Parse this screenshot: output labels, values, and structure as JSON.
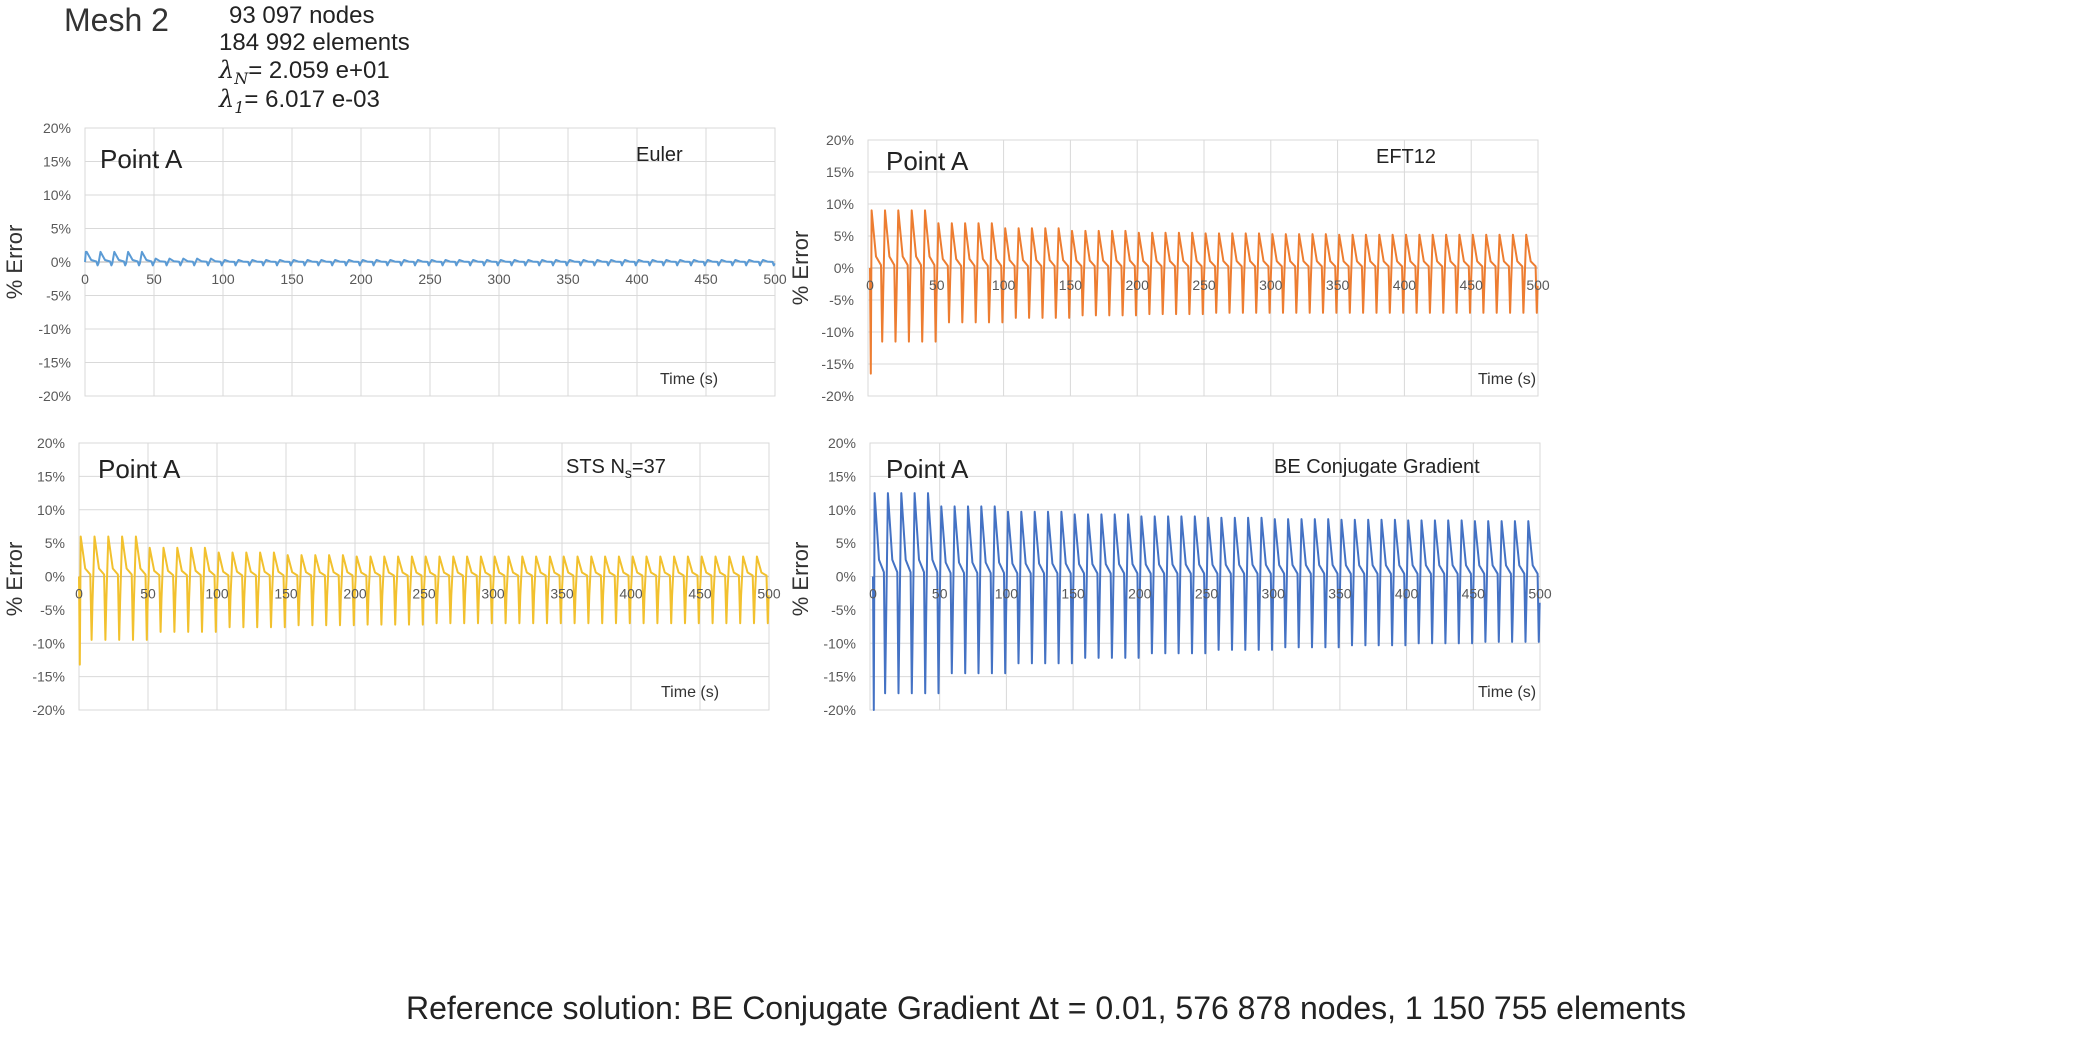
{
  "header": {
    "mesh_title": "Mesh 2",
    "nodes": "93 097 nodes",
    "elements": "184 992 elements",
    "lambda_n_value": "= 2.059 e+01",
    "lambda_1_value": "=  6.017 e-03"
  },
  "footer": {
    "reference": "Reference solution: BE Conjugate Gradient  Δt = 0.01,  576 878 nodes, 1 150 755 elements"
  },
  "chart_data": [
    {
      "type": "line",
      "point_label": "Point A",
      "method": "Euler",
      "color": "#5b9bd5",
      "ylabel": "% Error",
      "xlabel": "Time (s)",
      "xlim": [
        0,
        500
      ],
      "ylim": [
        -20,
        20
      ],
      "x_ticks": [
        "0",
        "50",
        "100",
        "150",
        "200",
        "250",
        "300",
        "350",
        "400",
        "450",
        "500"
      ],
      "y_ticks": [
        "20%",
        "15%",
        "10%",
        "5%",
        "0%",
        "-5%",
        "-10%",
        "-15%",
        "-20%"
      ],
      "grid": true,
      "period_s": 10,
      "start_peak_pct": 1.5,
      "peak_pct": [
        1.5,
        0.5,
        0.3,
        0.3,
        0.3,
        0.3,
        0.3,
        0.3,
        0.3,
        0.3,
        0.3
      ],
      "trough_pct": [
        -0.5,
        -0.5,
        -0.5,
        -0.5,
        -0.5,
        -0.5,
        -0.5,
        -0.5,
        -0.5,
        -0.5,
        -0.5
      ]
    },
    {
      "type": "line",
      "point_label": "Point A",
      "method": "EFT12",
      "color": "#ed7d31",
      "ylabel": "% Error",
      "xlabel": "Time (s)",
      "xlim": [
        0,
        500
      ],
      "ylim": [
        -20,
        20
      ],
      "x_ticks": [
        "0",
        "50",
        "100",
        "150",
        "200",
        "250",
        "300",
        "350",
        "400",
        "450",
        "500"
      ],
      "y_ticks": [
        "20%",
        "15%",
        "10%",
        "5%",
        "0%",
        "-5%",
        "-10%",
        "-15%",
        "-20%"
      ],
      "grid": true,
      "period_s": 10,
      "start_peak_pct": -16.5,
      "peak_pct": [
        9,
        7,
        6.2,
        5.8,
        5.5,
        5.4,
        5.3,
        5.2,
        5.2,
        5.2,
        5.2
      ],
      "trough_pct": [
        -11.5,
        -8.5,
        -7.8,
        -7.4,
        -7.2,
        -7.0,
        -7.0,
        -7.0,
        -7.0,
        -7.0,
        -7.0
      ]
    },
    {
      "type": "line",
      "point_label": "Point A",
      "method": "STS N",
      "method_sub": "s",
      "method_suffix": "=37",
      "color": "#f2c12e",
      "ylabel": "% Error",
      "xlabel": "Time (s)",
      "xlim": [
        0,
        500
      ],
      "ylim": [
        -20,
        20
      ],
      "x_ticks": [
        "0",
        "50",
        "100",
        "150",
        "200",
        "250",
        "300",
        "350",
        "400",
        "450",
        "500"
      ],
      "y_ticks": [
        "20%",
        "15%",
        "10%",
        "5%",
        "0%",
        "-5%",
        "-10%",
        "-15%",
        "-20%"
      ],
      "grid": true,
      "period_s": 10,
      "start_peak_pct": -13.2,
      "peak_pct": [
        6,
        4.3,
        3.6,
        3.2,
        3.0,
        3.0,
        3.0,
        3.0,
        3.0,
        3.0,
        3.0
      ],
      "trough_pct": [
        -9.5,
        -8.3,
        -7.6,
        -7.3,
        -7.2,
        -7.0,
        -7.0,
        -7.0,
        -7.0,
        -7.0,
        -7.0
      ]
    },
    {
      "type": "line",
      "point_label": "Point A",
      "method": "BE Conjugate Gradient",
      "color": "#4472c4",
      "ylabel": "% Error",
      "xlabel": "Time (s)",
      "xlim": [
        0,
        500
      ],
      "ylim": [
        -20,
        20
      ],
      "x_ticks": [
        "0",
        "50",
        "100",
        "150",
        "200",
        "250",
        "300",
        "350",
        "400",
        "450",
        "500"
      ],
      "y_ticks": [
        "20%",
        "15%",
        "10%",
        "5%",
        "0%",
        "-5%",
        "-10%",
        "-15%",
        "-20%"
      ],
      "grid": true,
      "period_s": 10,
      "start_peak_pct": -20,
      "peak_pct": [
        12.5,
        10.5,
        9.7,
        9.3,
        9.0,
        8.8,
        8.6,
        8.5,
        8.4,
        8.3,
        8.3
      ],
      "trough_pct": [
        -17.5,
        -14.5,
        -13.0,
        -12.2,
        -11.5,
        -11.0,
        -10.6,
        -10.3,
        -10.0,
        -9.8,
        -9.6
      ]
    }
  ]
}
